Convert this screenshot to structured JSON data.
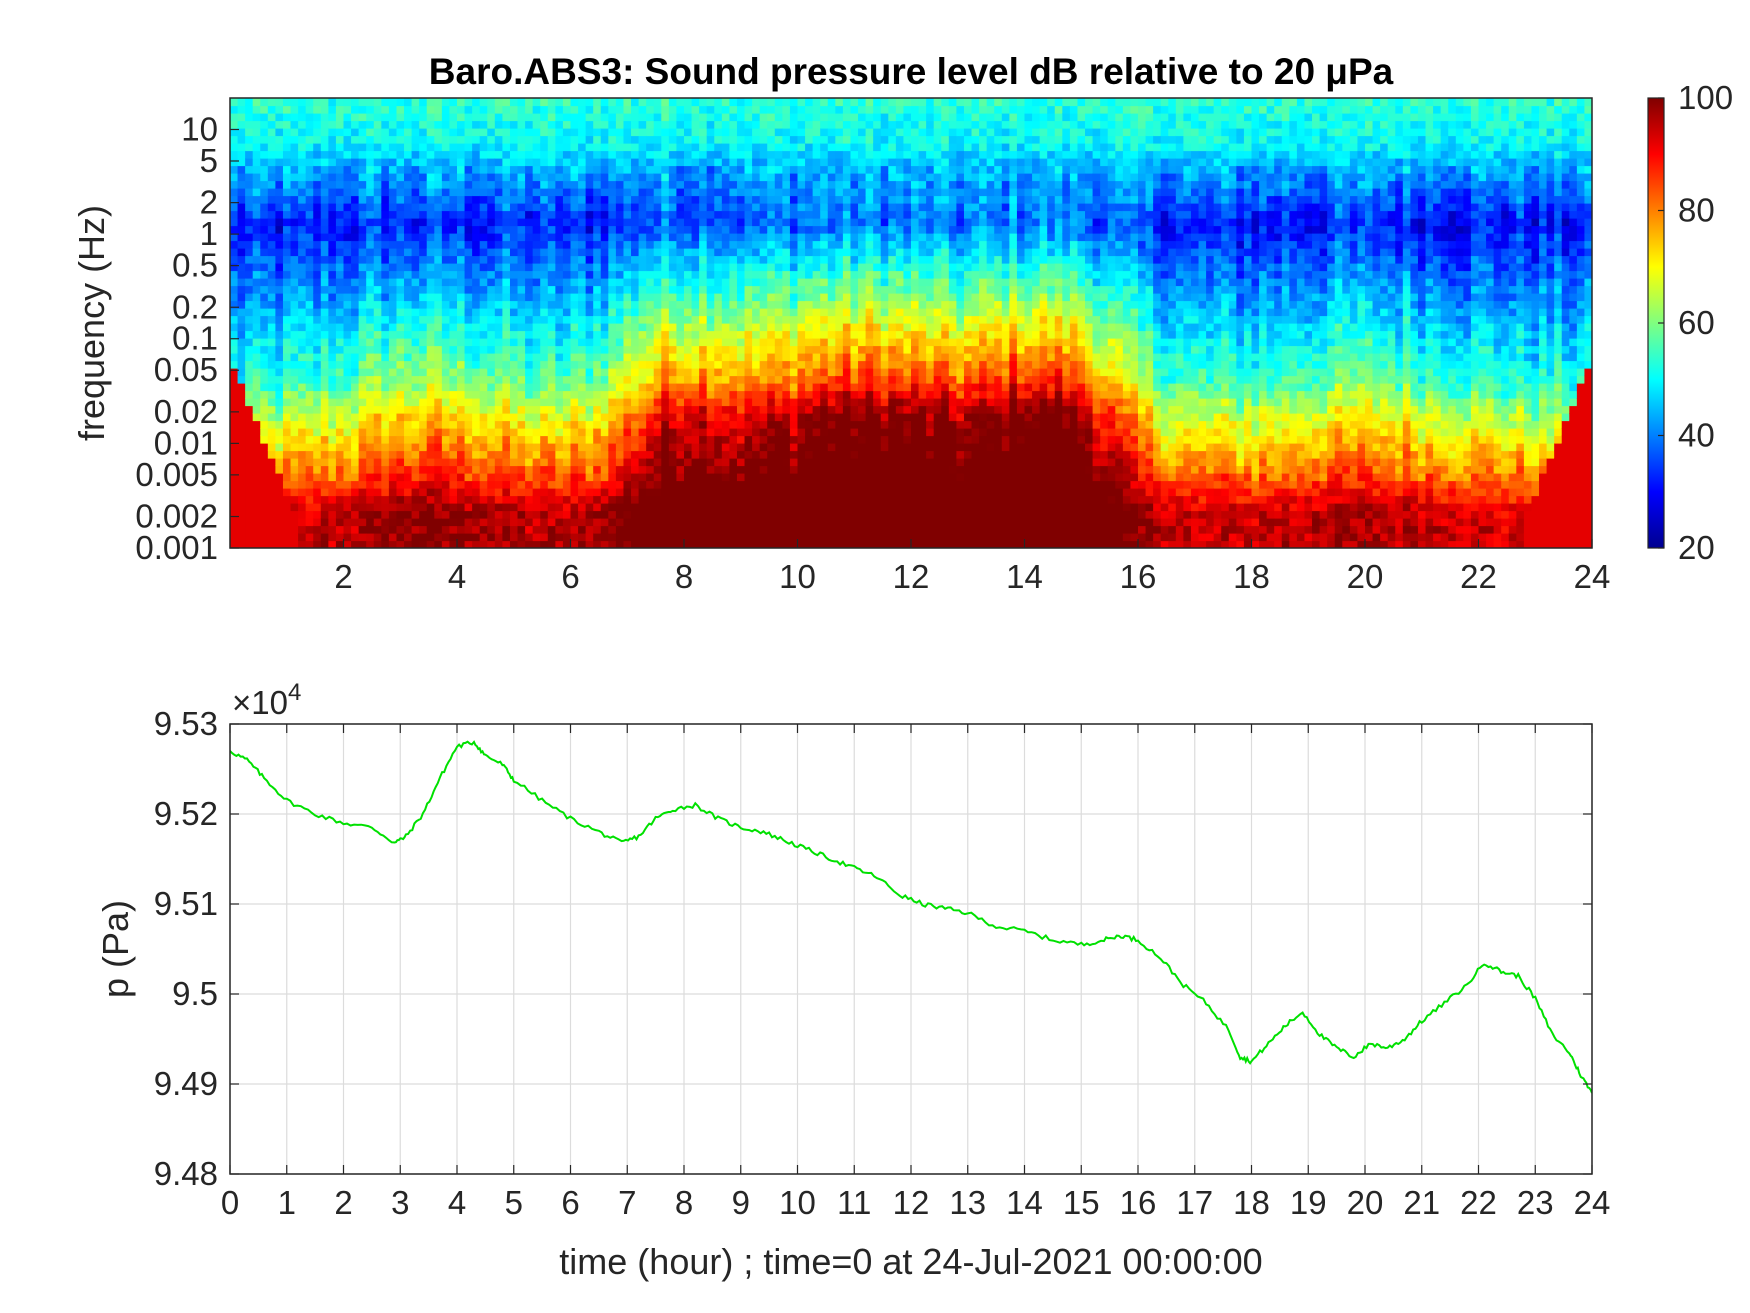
{
  "chart_data": [
    {
      "type": "heatmap",
      "title": "Baro.ABS3: Sound pressure level dB relative to 20 μPa",
      "ylabel": "frequency (Hz)",
      "xlabel": "",
      "y_scale": "log",
      "xlim": [
        0,
        24
      ],
      "ylim": [
        0.001,
        20
      ],
      "x_ticks": [
        2,
        4,
        6,
        8,
        10,
        12,
        14,
        16,
        18,
        20,
        22,
        24
      ],
      "x_tick_labels": [
        "2",
        "4",
        "6",
        "8",
        "10",
        "12",
        "14",
        "16",
        "18",
        "20",
        "22",
        "24"
      ],
      "y_ticks": [
        0.001,
        0.002,
        0.005,
        0.01,
        0.02,
        0.05,
        0.1,
        0.2,
        0.5,
        1,
        2,
        5,
        10
      ],
      "y_tick_labels": [
        "0.001",
        "0.002",
        "0.005",
        "0.01",
        "0.02",
        "0.05",
        "0.1",
        "0.2",
        "0.5",
        "1",
        "2",
        "5",
        "10"
      ],
      "colorbar": {
        "colormap": "jet",
        "range": [
          20,
          100
        ],
        "ticks": [
          20,
          40,
          60,
          80,
          100
        ],
        "tick_labels": [
          "20",
          "40",
          "60",
          "80",
          "100"
        ]
      },
      "grid": false
    },
    {
      "type": "line",
      "title": "",
      "xlabel": "time (hour) ; time=0 at 24-Jul-2021 00:00:00",
      "ylabel": "p (Pa)",
      "xlim": [
        0,
        24
      ],
      "ylim": [
        94800,
        95300
      ],
      "y_exponent_label": "×10",
      "y_exponent_power": "4",
      "x_ticks": [
        0,
        1,
        2,
        3,
        4,
        5,
        6,
        7,
        8,
        9,
        10,
        11,
        12,
        13,
        14,
        15,
        16,
        17,
        18,
        19,
        20,
        21,
        22,
        23,
        24
      ],
      "x_tick_labels": [
        "0",
        "1",
        "2",
        "3",
        "4",
        "5",
        "6",
        "7",
        "8",
        "9",
        "10",
        "11",
        "12",
        "13",
        "14",
        "15",
        "16",
        "17",
        "18",
        "19",
        "20",
        "21",
        "22",
        "23",
        "24"
      ],
      "y_ticks": [
        94800,
        94900,
        95000,
        95100,
        95200,
        95300
      ],
      "y_tick_labels": [
        "9.48",
        "9.49",
        "9.5",
        "9.51",
        "9.52",
        "9.53"
      ],
      "grid": true,
      "line_color": "#00e000",
      "series": [
        {
          "x": [
            0,
            0.3,
            0.6,
            1.0,
            1.5,
            2.0,
            2.5,
            2.9,
            3.1,
            3.4,
            3.7,
            4.0,
            4.3,
            4.5,
            4.8,
            5.0,
            5.5,
            6.0,
            6.5,
            6.9,
            7.2,
            7.5,
            7.8,
            8.2,
            8.6,
            9.0,
            9.4,
            9.8,
            10.2,
            10.6,
            11.0,
            11.4,
            11.8,
            12.2,
            12.6,
            13.0,
            13.5,
            14.0,
            14.5,
            15.0,
            15.4,
            15.7,
            16.0,
            16.4,
            16.8,
            17.2,
            17.6,
            17.8,
            18.0,
            18.3,
            18.6,
            18.9,
            19.2,
            19.5,
            19.8,
            20.1,
            20.4,
            20.7,
            21.0,
            21.4,
            21.8,
            22.1,
            22.4,
            22.7,
            23.0,
            23.3,
            23.6,
            23.8,
            24.0
          ],
          "y": [
            95270,
            95260,
            95240,
            95215,
            95200,
            95190,
            95185,
            95168,
            95175,
            95200,
            95240,
            95275,
            95280,
            95265,
            95255,
            95238,
            95215,
            95195,
            95180,
            95168,
            95175,
            95195,
            95205,
            95210,
            95195,
            95185,
            95180,
            95170,
            95160,
            95150,
            95140,
            95130,
            95110,
            95100,
            95095,
            95090,
            95075,
            95070,
            95060,
            95055,
            95060,
            95065,
            95060,
            95040,
            95010,
            94990,
            94960,
            94930,
            94925,
            94945,
            94965,
            94980,
            94955,
            94940,
            94930,
            94945,
            94940,
            94950,
            94970,
            94990,
            95010,
            95035,
            95025,
            95020,
            94995,
            94955,
            94935,
            94910,
            94890
          ]
        }
      ]
    }
  ]
}
